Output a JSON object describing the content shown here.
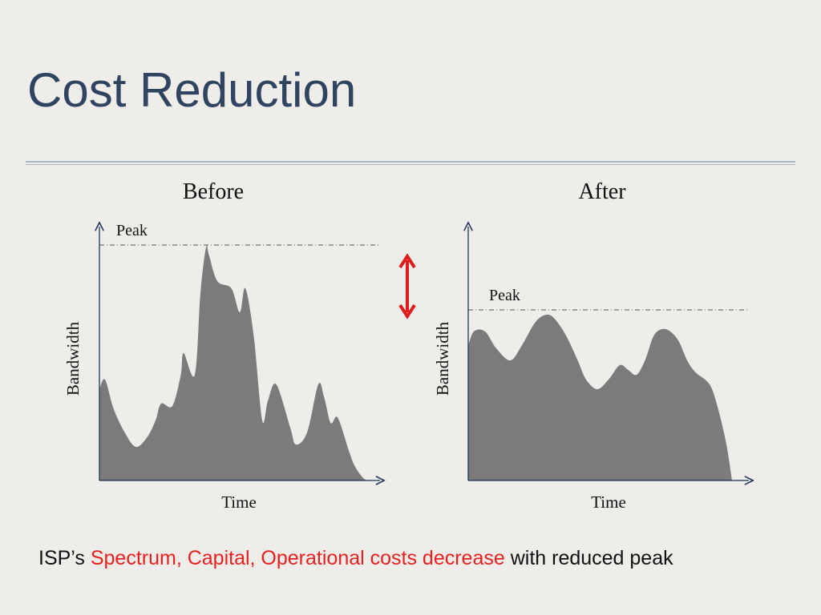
{
  "slide": {
    "title": "Cost Reduction",
    "caption_prefix": "ISP’s ",
    "caption_highlight": "Spectrum, Capital, Operational costs decrease",
    "caption_suffix": " with reduced peak"
  },
  "colors": {
    "title": "#2f4460",
    "area_fill": "#7b7b7b",
    "axis": "#1f3558",
    "highlight": "#e8201e",
    "arrow": "#e11b1b"
  },
  "chart_data": [
    {
      "type": "area",
      "title": "Before",
      "xlabel": "Time",
      "ylabel": "Bandwidth",
      "annotation": "Peak",
      "peak": 0.98,
      "x": [
        0,
        0.02,
        0.05,
        0.09,
        0.13,
        0.17,
        0.2,
        0.22,
        0.26,
        0.29,
        0.3,
        0.34,
        0.36,
        0.38,
        0.39,
        0.42,
        0.47,
        0.5,
        0.52,
        0.55,
        0.58,
        0.6,
        0.63,
        0.68,
        0.7,
        0.74,
        0.78,
        0.8,
        0.82,
        0.83,
        0.85,
        0.89,
        0.91,
        0.94,
        0.96
      ],
      "values": [
        0.38,
        0.42,
        0.3,
        0.2,
        0.14,
        0.18,
        0.25,
        0.32,
        0.31,
        0.44,
        0.53,
        0.44,
        0.78,
        0.97,
        0.94,
        0.83,
        0.8,
        0.7,
        0.8,
        0.6,
        0.25,
        0.33,
        0.4,
        0.22,
        0.15,
        0.2,
        0.4,
        0.35,
        0.25,
        0.24,
        0.26,
        0.12,
        0.06,
        0.01,
        0
      ]
    },
    {
      "type": "area",
      "title": "After",
      "xlabel": "Time",
      "ylabel": "Bandwidth",
      "annotation": "Peak",
      "peak": 0.71,
      "x": [
        0,
        0.02,
        0.06,
        0.1,
        0.15,
        0.19,
        0.24,
        0.28,
        0.31,
        0.35,
        0.39,
        0.42,
        0.46,
        0.5,
        0.54,
        0.57,
        0.6,
        0.63,
        0.66,
        0.69,
        0.72,
        0.75,
        0.78,
        0.81,
        0.86,
        0.89,
        0.92,
        0.94
      ],
      "values": [
        0.56,
        0.62,
        0.62,
        0.55,
        0.5,
        0.56,
        0.66,
        0.69,
        0.67,
        0.6,
        0.5,
        0.42,
        0.38,
        0.42,
        0.48,
        0.46,
        0.44,
        0.5,
        0.6,
        0.63,
        0.62,
        0.58,
        0.5,
        0.45,
        0.4,
        0.3,
        0.15,
        0
      ]
    }
  ],
  "indicator": {
    "label": "peak reduction arrow"
  }
}
